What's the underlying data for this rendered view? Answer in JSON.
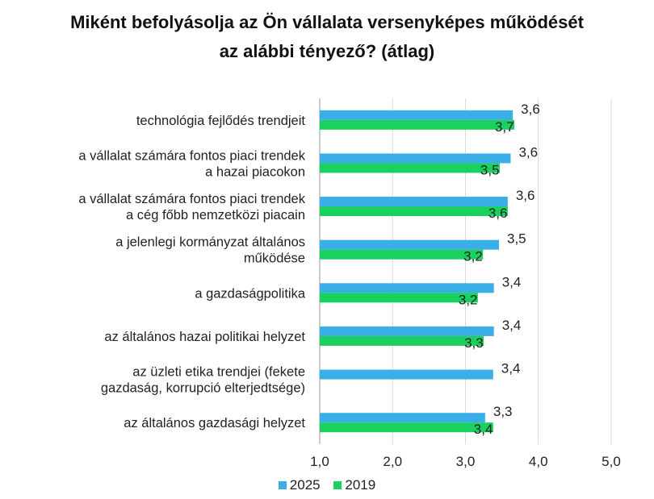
{
  "chart_data": {
    "type": "bar",
    "orientation": "horizontal",
    "title": "Miként befolyásolja az Ön vállalata versenyképes működését\naz alábbi tényező? (átlag)",
    "categories": [
      [
        "technológia fejlődés trendjeit"
      ],
      [
        "a vállalat számára fontos piaci trendek",
        "a hazai piacokon"
      ],
      [
        "a vállalat számára fontos piaci trendek",
        "a cég főbb nemzetközi piacain"
      ],
      [
        "a jelenlegi kormányzat általános",
        "működése"
      ],
      [
        "a gazdaságpolitika"
      ],
      [
        "az általános hazai politikai helyzet"
      ],
      [
        "az üzleti etika trendjei (fekete",
        "gazdaság, korrupció elterjedtsége)"
      ],
      [
        "az általános gazdasági helyzet"
      ]
    ],
    "series": [
      {
        "name": "2025",
        "color": "#3AAEE6",
        "values": [
          3.65,
          3.62,
          3.58,
          3.46,
          3.39,
          3.39,
          3.38,
          3.27
        ],
        "labels": [
          "3,6",
          "3,6",
          "3,6",
          "3,5",
          "3,4",
          "3,4",
          "3,4",
          "3,3"
        ]
      },
      {
        "name": "2019",
        "color": "#1AD05E",
        "values": [
          3.67,
          3.47,
          3.58,
          3.24,
          3.17,
          3.25,
          null,
          3.38
        ],
        "labels": [
          "3,7",
          "3,5",
          "3,6",
          "3,2",
          "3,2",
          "3,3",
          "",
          "3,4"
        ]
      }
    ],
    "xlim": [
      1.0,
      5.0
    ],
    "ticks": [
      1.0,
      2.0,
      3.0,
      4.0,
      5.0
    ],
    "tick_labels": [
      "1,0",
      "2,0",
      "3,0",
      "4,0",
      "5,0"
    ],
    "grid": true,
    "legend_position": "bottom"
  }
}
